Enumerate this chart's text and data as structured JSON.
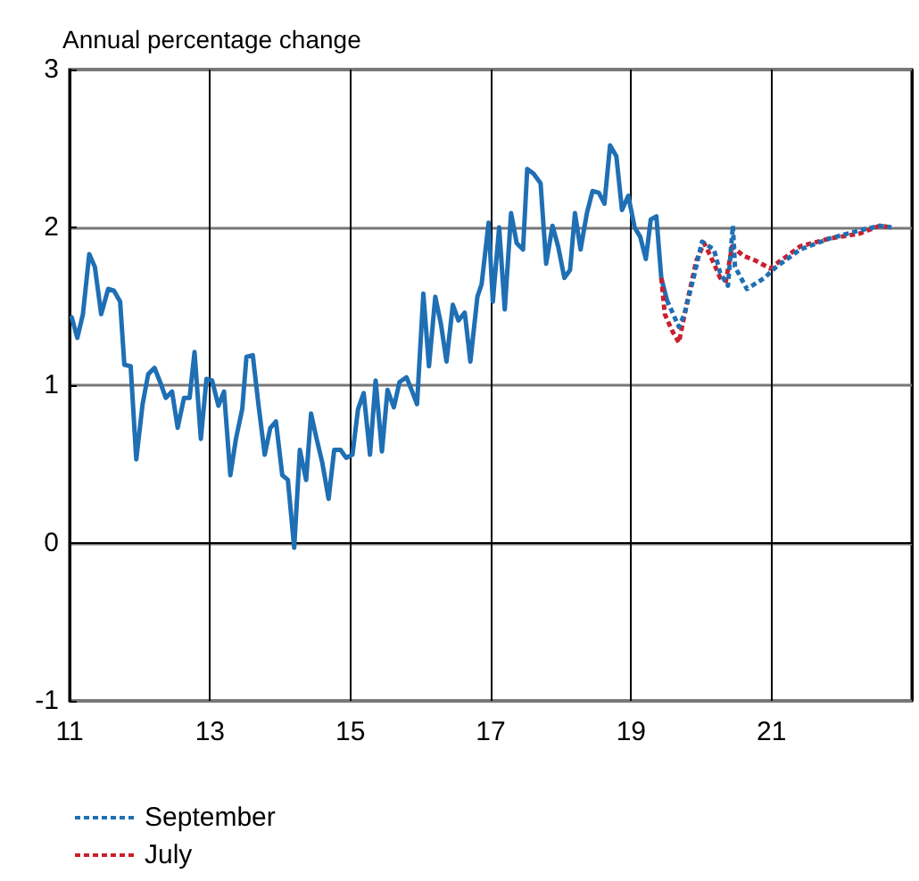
{
  "chart_data": {
    "type": "line",
    "ylabel": "Annual percentage change",
    "xlim": [
      11,
      23
    ],
    "xticks": [
      11,
      13,
      15,
      17,
      19,
      21,
      {
        "value": 23,
        "label": null
      }
    ],
    "ylim": [
      -1,
      3
    ],
    "yticks": [
      -1,
      0,
      1,
      2,
      3
    ],
    "grid": true,
    "legend": "bottom",
    "marker": "none",
    "series": [
      {
        "color": "#1f6fb4",
        "line_style": "solid",
        "x": [
          11.03,
          11.11,
          11.19,
          11.28,
          11.36,
          11.45,
          11.55,
          11.63,
          11.72,
          11.78,
          11.87,
          11.95,
          12.04,
          12.12,
          12.21,
          12.29,
          12.37,
          12.46,
          12.54,
          12.63,
          12.71,
          12.78,
          12.87,
          12.95,
          13.03,
          13.12,
          13.2,
          13.29,
          13.37,
          13.46,
          13.52,
          13.61,
          13.69,
          13.78,
          13.86,
          13.94,
          14.03,
          14.11,
          14.2,
          14.28,
          14.37,
          14.44,
          14.52,
          14.6,
          14.69,
          14.77,
          14.86,
          14.94,
          15.03,
          15.11,
          15.19,
          15.28,
          15.36,
          15.45,
          15.53,
          15.62,
          15.7,
          15.8,
          15.89,
          15.95,
          16.04,
          16.12,
          16.21,
          16.29,
          16.37,
          16.46,
          16.54,
          16.63,
          16.71,
          16.81,
          16.87,
          16.97,
          17.03,
          17.12,
          17.2,
          17.29,
          17.37,
          17.46,
          17.52,
          17.61,
          17.71,
          17.79,
          17.88,
          17.96,
          18.05,
          18.13,
          18.2,
          18.28,
          18.37,
          18.45,
          18.54,
          18.62,
          18.7,
          18.79,
          18.87,
          18.96,
          19.05,
          19.13,
          19.21,
          19.28,
          19.36,
          19.43,
          19.51
        ],
        "values": [
          1.43,
          1.3,
          1.45,
          1.83,
          1.75,
          1.45,
          1.61,
          1.6,
          1.53,
          1.13,
          1.12,
          0.53,
          0.88,
          1.07,
          1.11,
          1.02,
          0.92,
          0.96,
          0.73,
          0.92,
          0.92,
          1.21,
          0.66,
          1.04,
          1.03,
          0.87,
          0.96,
          0.43,
          0.66,
          0.85,
          1.18,
          1.19,
          0.88,
          0.56,
          0.73,
          0.77,
          0.43,
          0.4,
          -0.03,
          0.59,
          0.4,
          0.82,
          0.66,
          0.51,
          0.28,
          0.59,
          0.59,
          0.54,
          0.56,
          0.85,
          0.95,
          0.56,
          1.03,
          0.58,
          0.97,
          0.86,
          1.02,
          1.05,
          0.95,
          0.88,
          1.58,
          1.12,
          1.56,
          1.39,
          1.15,
          1.51,
          1.41,
          1.46,
          1.15,
          1.56,
          1.64,
          2.03,
          1.53,
          2.0,
          1.48,
          2.09,
          1.9,
          1.86,
          2.37,
          2.34,
          2.28,
          1.77,
          2.01,
          1.88,
          1.68,
          1.73,
          2.09,
          1.86,
          2.09,
          2.23,
          2.22,
          2.15,
          2.52,
          2.45,
          2.11,
          2.2,
          2.0,
          1.94,
          1.8,
          2.05,
          2.07,
          1.68,
          1.54
        ]
      },
      {
        "name": "July",
        "color": "#c8202f",
        "line_style": "dotted",
        "x": [
          19.43,
          19.48,
          19.59,
          19.68,
          19.8,
          19.93,
          20.04,
          20.14,
          20.27,
          20.35,
          20.44,
          20.6,
          20.77,
          20.98,
          21.41,
          21.83,
          22.25,
          22.54,
          22.71
        ],
        "values": [
          1.68,
          1.45,
          1.34,
          1.27,
          1.53,
          1.79,
          1.9,
          1.81,
          1.68,
          1.66,
          1.88,
          1.82,
          1.79,
          1.74,
          1.88,
          1.93,
          1.96,
          2.01,
          2.0
        ]
      },
      {
        "name": "September",
        "color": "#1f6fb4",
        "line_style": "dotted",
        "x": [
          19.51,
          19.68,
          19.76,
          19.89,
          20.01,
          20.18,
          20.27,
          20.38,
          20.45,
          20.48,
          20.65,
          20.9,
          21.07,
          21.41,
          21.83,
          22.25,
          22.54,
          22.71
        ],
        "values": [
          1.54,
          1.37,
          1.45,
          1.68,
          1.91,
          1.86,
          1.71,
          1.63,
          2.01,
          1.75,
          1.61,
          1.68,
          1.75,
          1.86,
          1.93,
          1.98,
          2.01,
          2.0
        ]
      }
    ]
  }
}
